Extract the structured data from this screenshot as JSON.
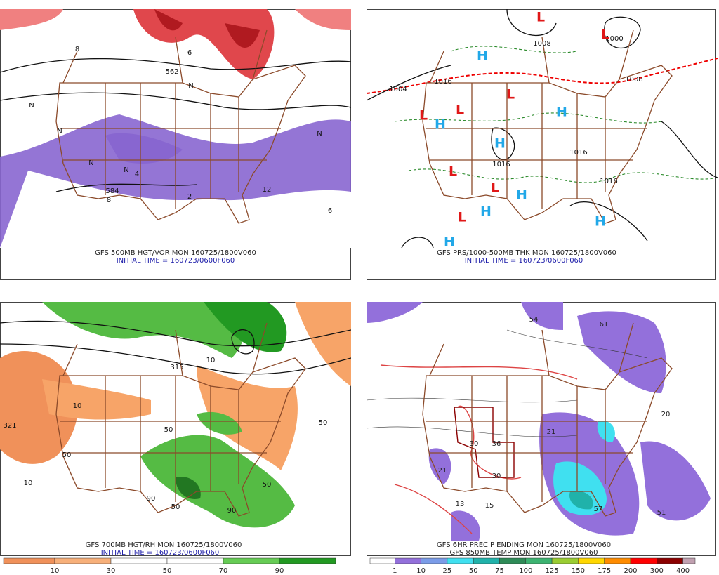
{
  "panels": [
    {
      "caption": "GFS 500MB HGT/VOR MON 160725/1800V060",
      "initial_time": "INITIAL TIME = 160723/0600F060",
      "labels": [
        "562",
        "584",
        "N",
        "N",
        "N",
        "N",
        "N",
        "N",
        "6",
        "8",
        "4",
        "2",
        "12",
        "8",
        "6"
      ]
    },
    {
      "caption": "GFS PRS/1000-500MB THK MON 160725/1800V060",
      "initial_time": "INITIAL TIME = 160723/0600F060",
      "centers": [
        "L",
        "L",
        "H",
        "L",
        "L",
        "L",
        "H",
        "H",
        "H",
        "L",
        "L",
        "H",
        "H",
        "L",
        "H",
        "H"
      ],
      "labels": [
        "1008",
        "1000",
        "1008",
        "1004",
        "1016",
        "1016",
        "1016",
        "1016"
      ]
    },
    {
      "caption": "GFS 700MB HGT/RH MON 160725/1800V060",
      "initial_time": "INITIAL TIME = 160723/0600F060",
      "labels": [
        "321",
        "315",
        "10",
        "10",
        "10",
        "50",
        "50",
        "50",
        "50",
        "90",
        "90",
        "50"
      ],
      "colorbar": {
        "labels": [
          "10",
          "30",
          "50",
          "70",
          "90"
        ],
        "colors": [
          "#f0915a",
          "#f7b07a",
          "#ffffff",
          "#ffffff",
          "#66cc55",
          "#229922"
        ]
      }
    },
    {
      "caption": "GFS 6HR PRECIP ENDING MON 160725/1800V060",
      "initial_time": "GFS 850MB TEMP MON 160725/1800V060",
      "labels": [
        "57",
        "54",
        "61",
        "51",
        "36",
        "30",
        "30",
        "20",
        "21",
        "21",
        "13",
        "15"
      ],
      "colorbar": {
        "labels": [
          "1",
          "10",
          "25",
          "50",
          "75",
          "100",
          "125",
          "150",
          "175",
          "200",
          "300",
          "400"
        ],
        "colors": [
          "#ffffff",
          "#9370db",
          "#7b9ce8",
          "#40e0f0",
          "#20b2aa",
          "#2e8b57",
          "#3cb371",
          "#9acd32",
          "#ffd700",
          "#ff8c00",
          "#ff0000",
          "#8b0000",
          "#c0a0b0"
        ]
      }
    }
  ]
}
